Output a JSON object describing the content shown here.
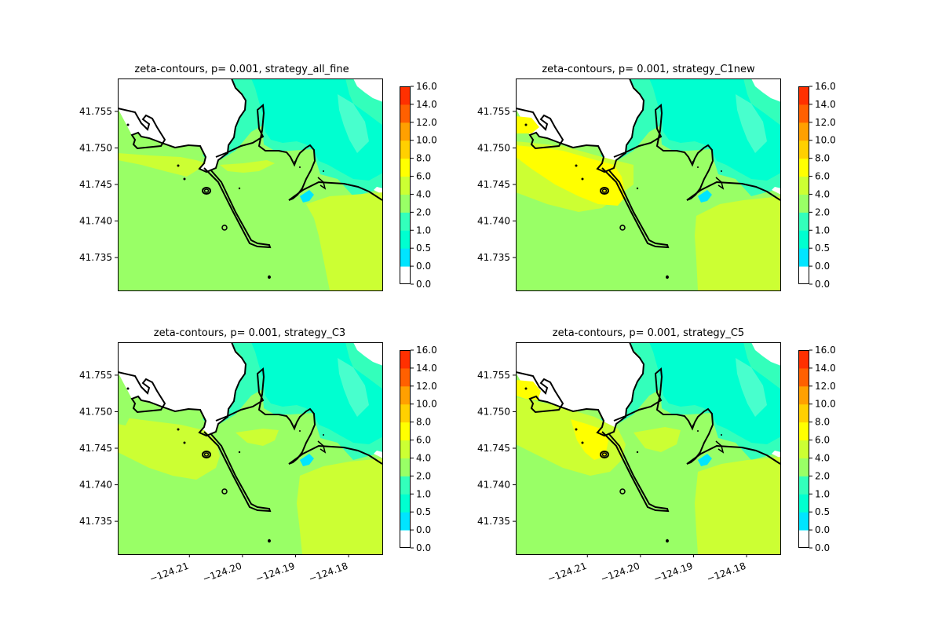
{
  "chart_data": [
    {
      "type": "contour",
      "title": "zeta-contours, p= 0.001, strategy_all_fine",
      "xlim": [
        -124.2235,
        -124.1735
      ],
      "ylim": [
        41.7305,
        41.7595
      ],
      "y_ticks": [
        "41.735",
        "41.740",
        "41.745",
        "41.750",
        "41.755"
      ],
      "x_ticks": [],
      "dominant_level": "2.0-4.0",
      "colorbar_ticks": [
        "0.0",
        "0.0",
        "0.5",
        "1.0",
        "2.0",
        "4.0",
        "6.0",
        "8.0",
        "10.0",
        "12.0",
        "14.0",
        "16.0"
      ]
    },
    {
      "type": "contour",
      "title": "zeta-contours, p= 0.001, strategy_C1new",
      "xlim": [
        -124.2235,
        -124.1735
      ],
      "ylim": [
        41.7305,
        41.7595
      ],
      "y_ticks": [
        "41.735",
        "41.740",
        "41.745",
        "41.750",
        "41.755"
      ],
      "x_ticks": [],
      "dominant_level": "2.0-4.0",
      "colorbar_ticks": [
        "0.0",
        "0.0",
        "0.5",
        "1.0",
        "2.0",
        "4.0",
        "6.0",
        "8.0",
        "10.0",
        "12.0",
        "14.0",
        "16.0"
      ]
    },
    {
      "type": "contour",
      "title": "zeta-contours, p= 0.001, strategy_C3",
      "xlim": [
        -124.2235,
        -124.1735
      ],
      "ylim": [
        41.7305,
        41.7595
      ],
      "y_ticks": [
        "41.735",
        "41.740",
        "41.745",
        "41.750",
        "41.755"
      ],
      "x_ticks": [
        "−124.21",
        "−124.20",
        "−124.19",
        "−124.18"
      ],
      "dominant_level": "2.0-4.0",
      "colorbar_ticks": [
        "0.0",
        "0.0",
        "0.5",
        "1.0",
        "2.0",
        "4.0",
        "6.0",
        "8.0",
        "10.0",
        "12.0",
        "14.0",
        "16.0"
      ]
    },
    {
      "type": "contour",
      "title": "zeta-contours, p= 0.001, strategy_C5",
      "xlim": [
        -124.2235,
        -124.1735
      ],
      "ylim": [
        41.7305,
        41.7595
      ],
      "y_ticks": [
        "41.735",
        "41.740",
        "41.745",
        "41.750",
        "41.755"
      ],
      "x_ticks": [
        "−124.21",
        "−124.20",
        "−124.19",
        "−124.18"
      ],
      "dominant_level": "2.0-4.0",
      "colorbar_ticks": [
        "0.0",
        "0.0",
        "0.5",
        "1.0",
        "2.0",
        "4.0",
        "6.0",
        "8.0",
        "10.0",
        "12.0",
        "14.0",
        "16.0"
      ]
    }
  ],
  "colors": {
    "levels": [
      "#ffffff",
      "#00e5ff",
      "#00ffd0",
      "#33ffbb",
      "#99ff66",
      "#ccff33",
      "#ffff00",
      "#ffd000",
      "#ffa000",
      "#ff6000",
      "#ff3000",
      "#ff0000"
    ],
    "land": "#ffffff",
    "coast": "#000000"
  }
}
